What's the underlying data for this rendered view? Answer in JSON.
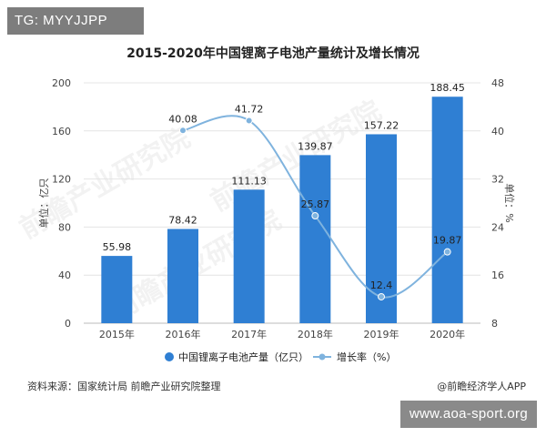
{
  "overlay": {
    "tag": "TG: MYYJJPP",
    "site": "www.aoa-sport.org"
  },
  "footer": {
    "source": "资料来源：国家统计局 前瞻产业研究院整理",
    "credit": "@前瞻经济学人APP"
  },
  "watermark": {
    "text": "前瞻产业研究院"
  },
  "colors": {
    "bar": "#2f7fd3",
    "line": "#7fb3de",
    "grid": "#e4e4e4",
    "axis_text": "#444444"
  },
  "chart_data": {
    "type": "bar",
    "title": "2015-2020年中国锂离子电池产量统计及增长情况",
    "categories": [
      "2015年",
      "2016年",
      "2017年",
      "2018年",
      "2019年",
      "2020年"
    ],
    "ylabel_left": "单位：亿只",
    "ylabel_right": "单位：%",
    "ylim_left": [
      0,
      200
    ],
    "ylim_right": [
      8,
      48
    ],
    "yticks_left": [
      0,
      40,
      80,
      120,
      160,
      200
    ],
    "yticks_right": [
      8,
      16,
      24,
      32,
      40,
      48
    ],
    "grid": true,
    "legend_position": "bottom",
    "series": [
      {
        "name": "中国锂离子电池产量（亿只）",
        "type": "bar",
        "axis": "left",
        "values": [
          55.98,
          78.42,
          111.13,
          139.87,
          157.22,
          188.45
        ],
        "labels": [
          "55.98",
          "78.42",
          "111.13",
          "139.87",
          "157.22",
          "188.45"
        ]
      },
      {
        "name": "增长率（%）",
        "type": "line",
        "axis": "right",
        "values": [
          null,
          40.08,
          41.72,
          25.87,
          12.4,
          19.87
        ],
        "labels": [
          "",
          "40.08",
          "41.72",
          "25.87",
          "12.4",
          "19.87"
        ]
      }
    ]
  }
}
